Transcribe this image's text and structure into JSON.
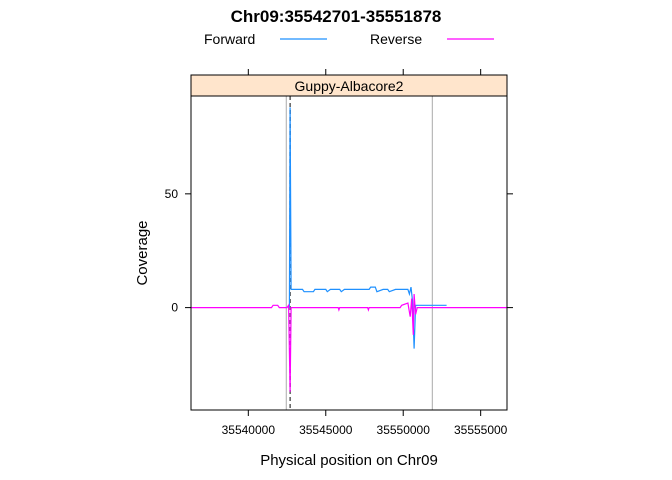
{
  "chart_data": {
    "type": "line",
    "title": "Chr09:35542701-35551878",
    "panel_title": "Guppy-Albacore2",
    "xlabel": "Physical position on Chr09",
    "ylabel": "Coverage",
    "xlim": [
      35536300,
      35556700
    ],
    "ylim": [
      -45,
      93
    ],
    "x_ticks": [
      35540000,
      35545000,
      35550000,
      35555000
    ],
    "x_tick_labels": [
      "35540000",
      "35545000",
      "35550000",
      "35555000"
    ],
    "y_ticks": [
      0,
      50
    ],
    "y_tick_labels": [
      "0",
      "50"
    ],
    "reference_lines": [
      {
        "x": 35542701,
        "style": "dashed",
        "color": "#666666"
      },
      {
        "x": 35542450,
        "style": "solid",
        "color": "#aaaaaa"
      },
      {
        "x": 35551878,
        "style": "solid",
        "color": "#aaaaaa"
      }
    ],
    "series": [
      {
        "name": "Forward",
        "color": "#1e90ff",
        "points": [
          [
            35542650,
            0
          ],
          [
            35542700,
            88
          ],
          [
            35542760,
            8
          ],
          [
            35543500,
            8
          ],
          [
            35543600,
            7
          ],
          [
            35544200,
            7
          ],
          [
            35544300,
            8
          ],
          [
            35545000,
            8
          ],
          [
            35545100,
            7
          ],
          [
            35545300,
            8
          ],
          [
            35545900,
            8
          ],
          [
            35546000,
            7
          ],
          [
            35546200,
            8
          ],
          [
            35547800,
            8
          ],
          [
            35547900,
            9
          ],
          [
            35548200,
            9
          ],
          [
            35548300,
            7
          ],
          [
            35548700,
            8
          ],
          [
            35549000,
            8
          ],
          [
            35549100,
            7
          ],
          [
            35549500,
            8
          ],
          [
            35550300,
            8
          ],
          [
            35550400,
            6
          ],
          [
            35550500,
            9
          ],
          [
            35550600,
            3
          ],
          [
            35550700,
            -18
          ],
          [
            35550800,
            1
          ],
          [
            35552800,
            1
          ]
        ]
      },
      {
        "name": "Reverse",
        "color": "#ff00ff",
        "points": [
          [
            35536300,
            0
          ],
          [
            35541500,
            0
          ],
          [
            35541600,
            1
          ],
          [
            35541900,
            1
          ],
          [
            35542000,
            0
          ],
          [
            35542500,
            0
          ],
          [
            35542600,
            1
          ],
          [
            35542700,
            -37
          ],
          [
            35542760,
            0
          ],
          [
            35545800,
            0
          ],
          [
            35545850,
            -1
          ],
          [
            35545900,
            0
          ],
          [
            35547700,
            0
          ],
          [
            35547750,
            -1
          ],
          [
            35547800,
            0
          ],
          [
            35549800,
            0
          ],
          [
            35549900,
            1
          ],
          [
            35550300,
            2
          ],
          [
            35550450,
            -4
          ],
          [
            35550550,
            4
          ],
          [
            35550650,
            -12
          ],
          [
            35550700,
            6
          ],
          [
            35550800,
            -3
          ],
          [
            35550900,
            0
          ],
          [
            35556700,
            0
          ]
        ]
      }
    ],
    "legend": {
      "position": "top",
      "entries": [
        "Forward",
        "Reverse"
      ]
    }
  }
}
